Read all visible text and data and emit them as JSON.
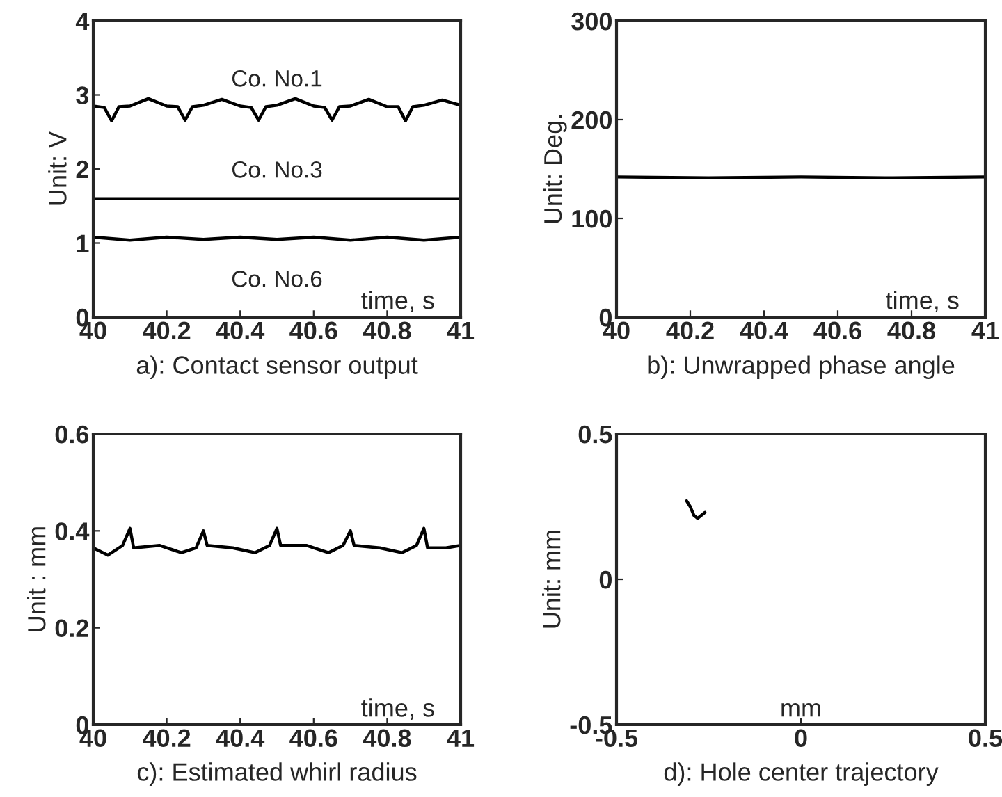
{
  "chart_data": [
    {
      "type": "line",
      "title": "a): Contact sensor output",
      "xlabel": "time, s",
      "ylabel": "Unit: V",
      "xlim": [
        40,
        41
      ],
      "xticks": [
        40,
        40.2,
        40.4,
        40.6,
        40.8,
        41
      ],
      "ylim": [
        0,
        4
      ],
      "yticks": [
        0,
        1,
        2,
        3,
        4
      ],
      "series": [
        {
          "name": "Co. No.1",
          "color": "#000000",
          "x": [
            40,
            40.03,
            40.05,
            40.07,
            40.1,
            40.15,
            40.2,
            40.23,
            40.25,
            40.27,
            40.3,
            40.35,
            40.4,
            40.43,
            40.45,
            40.47,
            40.5,
            40.55,
            40.6,
            40.63,
            40.65,
            40.67,
            40.7,
            40.75,
            40.8,
            40.83,
            40.85,
            40.87,
            40.9,
            40.95,
            41
          ],
          "values": [
            2.85,
            2.83,
            2.65,
            2.84,
            2.85,
            2.95,
            2.85,
            2.84,
            2.66,
            2.84,
            2.86,
            2.94,
            2.85,
            2.83,
            2.66,
            2.84,
            2.86,
            2.95,
            2.85,
            2.83,
            2.66,
            2.84,
            2.85,
            2.94,
            2.84,
            2.84,
            2.65,
            2.84,
            2.86,
            2.93,
            2.86
          ]
        },
        {
          "name": "Co. No.3",
          "color": "#000000",
          "x": [
            40,
            41
          ],
          "values": [
            1.6,
            1.6
          ]
        },
        {
          "name": "Co. No.6",
          "color": "#000000",
          "x": [
            40,
            40.1,
            40.2,
            40.3,
            40.4,
            40.5,
            40.6,
            40.7,
            40.8,
            40.9,
            41
          ],
          "values": [
            1.08,
            1.04,
            1.08,
            1.05,
            1.08,
            1.05,
            1.08,
            1.04,
            1.08,
            1.04,
            1.08
          ]
        }
      ]
    },
    {
      "type": "line",
      "title": "b): Unwrapped phase angle",
      "xlabel": "time, s",
      "ylabel": "Unit: Deg.",
      "xlim": [
        40,
        41
      ],
      "xticks": [
        40,
        40.2,
        40.4,
        40.6,
        40.8,
        41
      ],
      "ylim": [
        0,
        300
      ],
      "yticks": [
        0,
        100,
        200,
        300
      ],
      "series": [
        {
          "color": "#000000",
          "x": [
            40,
            40.25,
            40.5,
            40.75,
            41
          ],
          "values": [
            142,
            141,
            142,
            141,
            142
          ]
        }
      ]
    },
    {
      "type": "line",
      "title": "c): Estimated whirl radius",
      "xlabel": "time, s",
      "ylabel": "Unit : mm",
      "xlim": [
        40,
        41
      ],
      "xticks": [
        40,
        40.2,
        40.4,
        40.6,
        40.8,
        41
      ],
      "ylim": [
        0,
        0.6
      ],
      "yticks": [
        0,
        0.2,
        0.4,
        0.6
      ],
      "series": [
        {
          "color": "#000000",
          "x": [
            40,
            40.04,
            40.08,
            40.1,
            40.11,
            40.18,
            40.24,
            40.28,
            40.3,
            40.31,
            40.38,
            40.44,
            40.48,
            40.5,
            40.51,
            40.58,
            40.64,
            40.68,
            40.7,
            40.71,
            40.78,
            40.84,
            40.88,
            40.9,
            40.91,
            40.96,
            41
          ],
          "values": [
            0.365,
            0.35,
            0.37,
            0.405,
            0.365,
            0.37,
            0.355,
            0.365,
            0.4,
            0.37,
            0.365,
            0.355,
            0.37,
            0.405,
            0.37,
            0.37,
            0.355,
            0.37,
            0.4,
            0.37,
            0.365,
            0.355,
            0.37,
            0.405,
            0.365,
            0.365,
            0.37
          ]
        }
      ]
    },
    {
      "type": "line",
      "title": "d): Hole center trajectory",
      "xlabel": "mm",
      "ylabel": "Unit: mm",
      "xlim": [
        -0.5,
        0.5
      ],
      "xticks": [
        -0.5,
        0,
        0.5
      ],
      "ylim": [
        -0.5,
        0.5
      ],
      "yticks": [
        -0.5,
        0,
        0.5
      ],
      "series": [
        {
          "color": "#000000",
          "x": [
            -0.31,
            -0.3,
            -0.29,
            -0.28,
            -0.26
          ],
          "values": [
            0.27,
            0.25,
            0.22,
            0.21,
            0.23
          ]
        }
      ]
    }
  ]
}
